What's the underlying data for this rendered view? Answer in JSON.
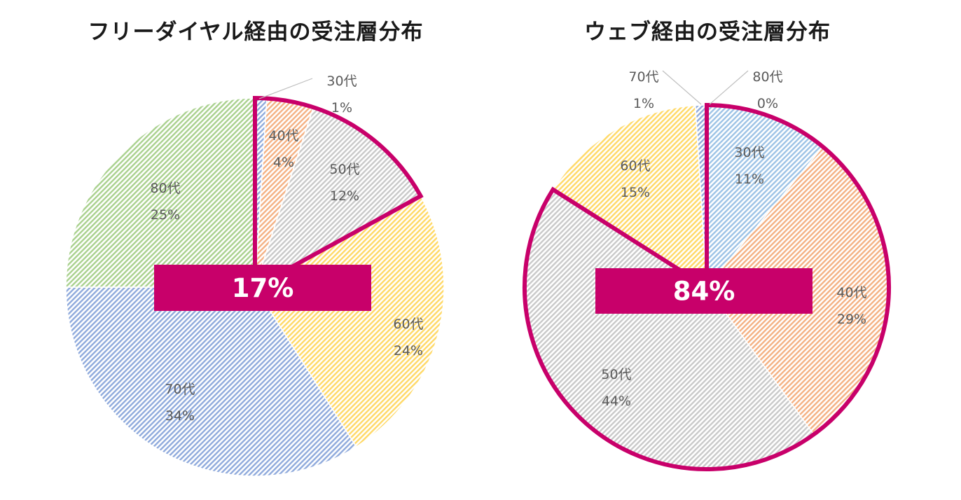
{
  "chart_data": [
    {
      "type": "pie",
      "title": "フリーダイヤル経由の受注層分布",
      "slices": [
        {
          "label": "30代",
          "value": 1,
          "pct": "1%",
          "color": "#8faadc"
        },
        {
          "label": "40代",
          "value": 4,
          "pct": "4%",
          "color": "#f4b183"
        },
        {
          "label": "50代",
          "value": 12,
          "pct": "12%",
          "color": "#c9c9c9"
        },
        {
          "label": "60代",
          "value": 24,
          "pct": "24%",
          "color": "#ffd966"
        },
        {
          "label": "70代",
          "value": 34,
          "pct": "34%",
          "color": "#8faadc"
        },
        {
          "label": "80代",
          "value": 25,
          "pct": "25%",
          "color": "#a9d18e"
        }
      ],
      "highlight": {
        "slices": [
          "30代",
          "40代",
          "50代"
        ],
        "value": "17%",
        "color": "#c8006a"
      }
    },
    {
      "type": "pie",
      "title": "ウェブ経由の受注層分布",
      "slices": [
        {
          "label": "30代",
          "value": 11,
          "pct": "11%",
          "color": "#9dc3e6"
        },
        {
          "label": "40代",
          "value": 29,
          "pct": "29%",
          "color": "#f4b183"
        },
        {
          "label": "50代",
          "value": 44,
          "pct": "44%",
          "color": "#c9c9c9"
        },
        {
          "label": "60代",
          "value": 15,
          "pct": "15%",
          "color": "#ffd966"
        },
        {
          "label": "70代",
          "value": 1,
          "pct": "1%",
          "color": "#8faadc"
        },
        {
          "label": "80代",
          "value": 0,
          "pct": "0%",
          "color": "#a9d18e"
        }
      ],
      "highlight": {
        "slices": [
          "30代",
          "40代",
          "50代"
        ],
        "value": "84%",
        "color": "#c8006a"
      }
    }
  ]
}
